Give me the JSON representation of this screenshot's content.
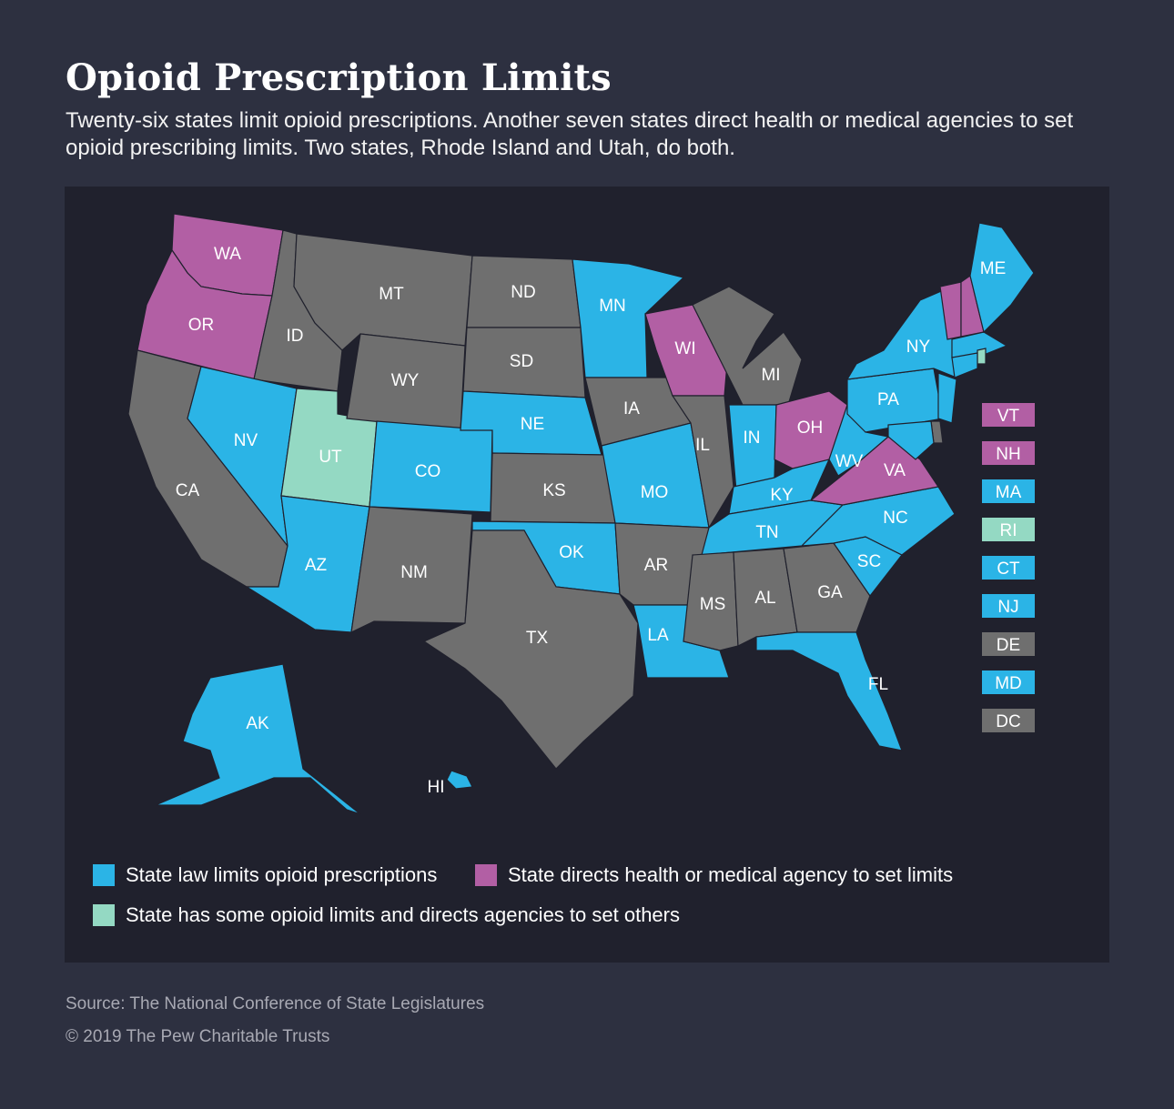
{
  "header": {
    "title": "Opioid Prescription Limits",
    "subtitle": "Twenty-six states limit opioid prescriptions. Another seven states direct health or medical agencies to set opioid prescribing limits. Two states, Rhode Island and Utah, do both."
  },
  "colors": {
    "law": "#2bb4e6",
    "agency": "#b25fa4",
    "both": "#94d9c3",
    "none": "#6f6f6f",
    "panel": "#20212d",
    "background": "#2d3040"
  },
  "states": {
    "WA": "WA",
    "OR": "OR",
    "CA": "CA",
    "ID": "ID",
    "NV": "NV",
    "UT": "UT",
    "AZ": "AZ",
    "MT": "MT",
    "WY": "WY",
    "CO": "CO",
    "NM": "NM",
    "ND": "ND",
    "SD": "SD",
    "NE": "NE",
    "KS": "KS",
    "OK": "OK",
    "TX": "TX",
    "MN": "MN",
    "IA": "IA",
    "MO": "MO",
    "AR": "AR",
    "LA": "LA",
    "WI": "WI",
    "IL": "IL",
    "MI": "MI",
    "IN": "IN",
    "OH": "OH",
    "KY": "KY",
    "TN": "TN",
    "MS": "MS",
    "AL": "AL",
    "GA": "GA",
    "FL": "FL",
    "SC": "SC",
    "NC": "NC",
    "VA": "VA",
    "WV": "WV",
    "PA": "PA",
    "NY": "NY",
    "ME": "ME",
    "AK": "AK",
    "HI": "HI"
  },
  "small_states": [
    {
      "code": "VT",
      "category": "agency"
    },
    {
      "code": "NH",
      "category": "agency"
    },
    {
      "code": "MA",
      "category": "law"
    },
    {
      "code": "RI",
      "category": "both"
    },
    {
      "code": "CT",
      "category": "law"
    },
    {
      "code": "NJ",
      "category": "law"
    },
    {
      "code": "DE",
      "category": "none"
    },
    {
      "code": "MD",
      "category": "law"
    },
    {
      "code": "DC",
      "category": "none"
    }
  ],
  "legend": {
    "law": "State law limits opioid prescriptions",
    "agency": "State directs health or medical agency to set limits",
    "both": "State has some opioid limits and directs agencies to set others"
  },
  "footer": {
    "source": "Source: The National Conference of State Legislatures",
    "copyright": "© 2019 The Pew Charitable Trusts"
  }
}
